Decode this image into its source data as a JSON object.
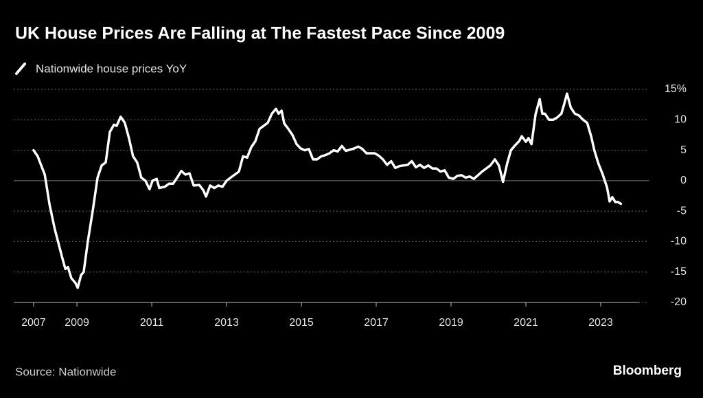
{
  "chart_data": {
    "type": "line",
    "title": "UK House Prices Are Falling at The Fastest Pace Since 2009",
    "source": "Source: Nationwide",
    "brand": "Bloomberg",
    "xlim": [
      2007.31,
      2024.01
    ],
    "xticks": [
      {
        "value": 2007.84,
        "label": "2007"
      },
      2009,
      2011,
      2013,
      2015,
      2017,
      2019,
      2021,
      2023
    ],
    "ylim": [
      -20,
      15
    ],
    "yticks": [
      {
        "value": 15,
        "label": "15%"
      },
      10,
      5,
      0,
      -5,
      -10,
      -15,
      -20
    ],
    "grid": true,
    "x": [
      2007.84,
      2007.95,
      2008.14,
      2008.27,
      2008.41,
      2008.6,
      2008.69,
      2008.76,
      2008.85,
      2008.96,
      2009.02,
      2009.11,
      2009.18,
      2009.29,
      2009.42,
      2009.55,
      2009.66,
      2009.77,
      2009.88,
      2009.99,
      2010.06,
      2010.17,
      2010.28,
      2010.39,
      2010.5,
      2010.61,
      2010.72,
      2010.83,
      2010.94,
      2011.02,
      2011.13,
      2011.2,
      2011.35,
      2011.46,
      2011.57,
      2011.68,
      2011.79,
      2011.9,
      2012.01,
      2012.12,
      2012.27,
      2012.38,
      2012.45,
      2012.56,
      2012.67,
      2012.78,
      2012.89,
      2013.0,
      2013.11,
      2013.22,
      2013.33,
      2013.44,
      2013.55,
      2013.66,
      2013.77,
      2013.88,
      2013.99,
      2014.1,
      2014.21,
      2014.32,
      2014.39,
      2014.47,
      2014.54,
      2014.65,
      2014.76,
      2014.87,
      2014.98,
      2015.09,
      2015.2,
      2015.31,
      2015.42,
      2015.53,
      2015.64,
      2015.75,
      2015.86,
      2015.97,
      2016.08,
      2016.19,
      2016.3,
      2016.41,
      2016.52,
      2016.63,
      2016.74,
      2016.85,
      2016.96,
      2017.07,
      2017.18,
      2017.29,
      2017.4,
      2017.51,
      2017.62,
      2017.73,
      2017.84,
      2017.95,
      2018.06,
      2018.17,
      2018.28,
      2018.39,
      2018.5,
      2018.61,
      2018.72,
      2018.83,
      2018.94,
      2019.06,
      2019.17,
      2019.28,
      2019.39,
      2019.5,
      2019.61,
      2019.72,
      2019.83,
      2019.94,
      2020.05,
      2020.17,
      2020.28,
      2020.39,
      2020.5,
      2020.6,
      2020.71,
      2020.82,
      2020.89,
      2021.0,
      2021.07,
      2021.15,
      2021.26,
      2021.37,
      2021.44,
      2021.51,
      2021.62,
      2021.73,
      2021.84,
      2021.95,
      2022.02,
      2022.1,
      2022.2,
      2022.31,
      2022.42,
      2022.53,
      2022.64,
      2022.75,
      2022.83,
      2022.94,
      2023.05,
      2023.17,
      2023.24,
      2023.31,
      2023.39,
      2023.46,
      2023.54
    ],
    "series": [
      {
        "name": "Nationwide house prices YoY",
        "color": "#ffffff",
        "values": [
          5,
          4,
          1,
          -4,
          -8,
          -12.5,
          -14.5,
          -14.2,
          -16,
          -16.8,
          -17.6,
          -15.5,
          -15,
          -10,
          -5,
          0.5,
          2.5,
          3,
          8,
          9.2,
          9,
          10.5,
          9.5,
          7,
          4,
          3,
          0.5,
          0,
          -1.4,
          0,
          0.3,
          -1.2,
          -1,
          -0.5,
          -0.5,
          0.5,
          1.6,
          1,
          1.2,
          -0.8,
          -0.7,
          -1.6,
          -2.6,
          -0.8,
          -1.2,
          -0.8,
          -1,
          0,
          0.5,
          1,
          1.5,
          4,
          3.8,
          5.5,
          6.5,
          8.5,
          9,
          9.5,
          11,
          11.8,
          11,
          11.5,
          9.4,
          8.5,
          7.5,
          6,
          5.3,
          5,
          5.2,
          3.5,
          3.5,
          4,
          4.2,
          4.5,
          5,
          4.8,
          5.7,
          4.9,
          5.1,
          5.3,
          5.6,
          5.2,
          4.5,
          4.5,
          4.5,
          4.1,
          3.5,
          2.6,
          3.2,
          2.1,
          2.4,
          2.5,
          2.6,
          3.2,
          2.2,
          2.6,
          2.1,
          2.5,
          2,
          2,
          1.5,
          1.7,
          0.5,
          0.3,
          0.8,
          0.9,
          0.5,
          0.7,
          0.3,
          0.9,
          1.5,
          2,
          2.5,
          3.5,
          2.5,
          -0.2,
          2.8,
          5,
          5.8,
          6.5,
          7.3,
          6.4,
          7,
          6,
          10.9,
          13.4,
          11,
          11,
          10,
          10,
          10.4,
          11,
          12.5,
          14.3,
          12,
          11,
          10.7,
          10,
          9.5,
          7.2,
          5,
          2.8,
          1.1,
          -1.1,
          -3.4,
          -2.7,
          -3.5,
          -3.5,
          -3.8
        ]
      }
    ]
  }
}
